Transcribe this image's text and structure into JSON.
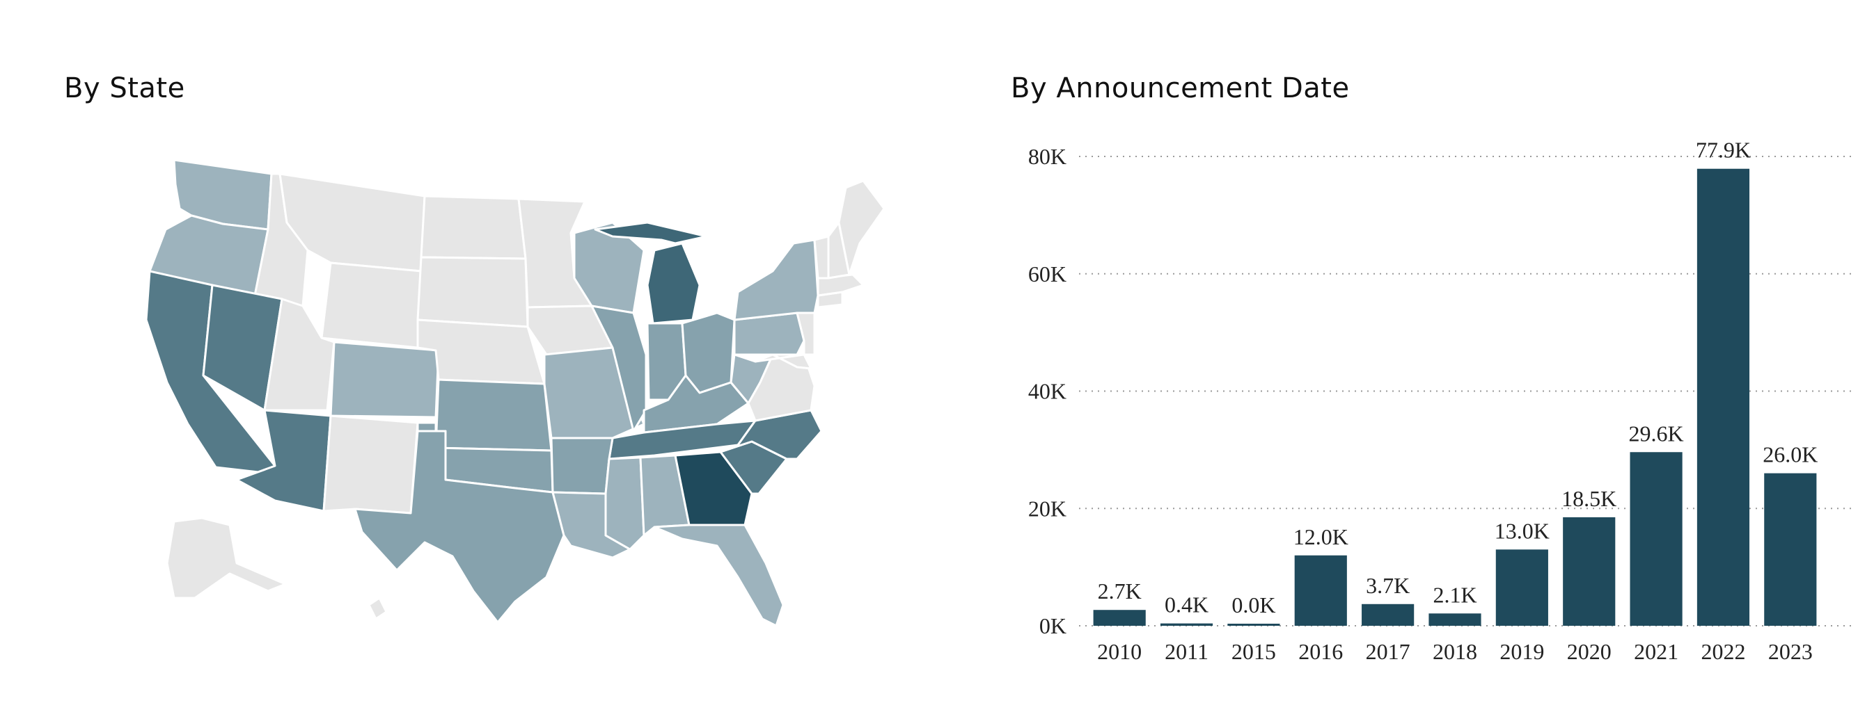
{
  "map_panel": {
    "title": "By State",
    "colors": {
      "none": "#e6e6e6",
      "light": "#9db3bd",
      "medium_light": "#86a2ad",
      "medium": "#7b98a3",
      "medium_dark": "#557a88",
      "darker": "#3e6777",
      "darkest": "#1f4a5c"
    },
    "state_shading": {
      "WA": "light",
      "OR": "light",
      "CA": "medium_dark",
      "NV": "medium_dark",
      "AZ": "medium_dark",
      "CO": "light",
      "KS": "medium_light",
      "OK": "medium_light",
      "TX": "medium_light",
      "MO": "light",
      "AR": "medium_light",
      "LA": "light",
      "MS": "light",
      "AL": "light",
      "GA": "darkest",
      "FL": "light",
      "SC": "medium_dark",
      "NC": "medium_dark",
      "TN": "medium_dark",
      "KY": "medium_light",
      "IN": "medium_light",
      "IL": "medium_light",
      "OH": "medium_light",
      "MI": "darker",
      "WI": "light",
      "NY": "light",
      "PA": "light",
      "WV": "light"
    }
  },
  "chart_panel": {
    "title": "By Announcement Date"
  },
  "chart_data": {
    "type": "bar",
    "title": "By Announcement Date",
    "categories": [
      "2010",
      "2011",
      "2015",
      "2016",
      "2017",
      "2018",
      "2019",
      "2020",
      "2021",
      "2022",
      "2023"
    ],
    "values": [
      2.7,
      0.4,
      0.0,
      12.0,
      3.7,
      2.1,
      13.0,
      18.5,
      29.6,
      77.9,
      26.0
    ],
    "data_labels": [
      "2.7K",
      "0.4K",
      "0.0K",
      "12.0K",
      "3.7K",
      "2.1K",
      "13.0K",
      "18.5K",
      "29.6K",
      "77.9K",
      "26.0K"
    ],
    "y_ticks": [
      0,
      20,
      40,
      60,
      80
    ],
    "y_tick_labels": [
      "0K",
      "20K",
      "40K",
      "60K",
      "80K"
    ],
    "ylim": [
      0,
      80
    ],
    "grid": true,
    "bar_color": "#1f4a5c"
  }
}
